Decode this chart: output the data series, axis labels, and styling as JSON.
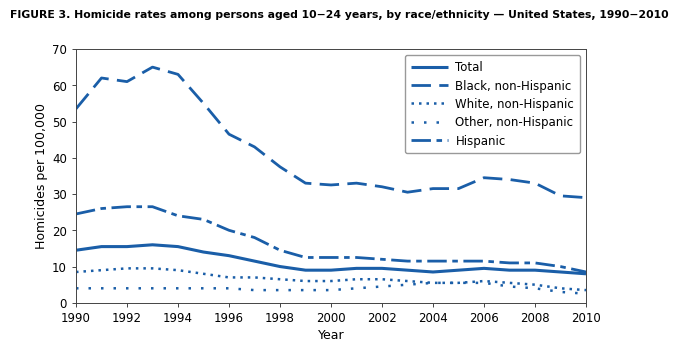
{
  "title": "FIGURE 3. Homicide rates among persons aged 10−24 years, by race/ethnicity — United States, 1990−2010",
  "xlabel": "Year",
  "ylabel": "Homicides per 100,000",
  "ylim": [
    0,
    70
  ],
  "yticks": [
    0,
    10,
    20,
    30,
    40,
    50,
    60,
    70
  ],
  "years": [
    1990,
    1991,
    1992,
    1993,
    1994,
    1995,
    1996,
    1997,
    1998,
    1999,
    2000,
    2001,
    2002,
    2003,
    2004,
    2005,
    2006,
    2007,
    2008,
    2009,
    2010
  ],
  "xticks": [
    1990,
    1992,
    1994,
    1996,
    1998,
    2000,
    2002,
    2004,
    2006,
    2008,
    2010
  ],
  "series": {
    "Total": {
      "values": [
        14.5,
        15.5,
        15.5,
        16.0,
        15.5,
        14.0,
        13.0,
        11.5,
        10.0,
        9.0,
        9.0,
        9.5,
        9.5,
        9.0,
        8.5,
        9.0,
        9.5,
        9.0,
        9.0,
        8.5,
        8.0
      ],
      "linestyle": "solid",
      "linewidth": 2.2,
      "color": "#1A5EA8"
    },
    "Black, non-Hispanic": {
      "values": [
        53.5,
        62.0,
        61.0,
        65.0,
        63.0,
        55.0,
        46.5,
        43.0,
        37.5,
        33.0,
        32.5,
        33.0,
        32.0,
        30.5,
        31.5,
        31.5,
        34.5,
        34.0,
        33.0,
        29.5,
        29.0
      ],
      "linestyle": "long_dash",
      "linewidth": 2.0,
      "color": "#1A5EA8"
    },
    "White, non-Hispanic": {
      "values": [
        8.5,
        9.0,
        9.5,
        9.5,
        9.0,
        8.0,
        7.0,
        7.0,
        6.5,
        6.0,
        6.0,
        6.5,
        6.5,
        6.0,
        5.5,
        5.5,
        6.0,
        5.5,
        5.0,
        4.0,
        3.5
      ],
      "linestyle": "dense_dot",
      "linewidth": 1.8,
      "color": "#1A5EA8"
    },
    "Other, non-Hispanic": {
      "values": [
        4.0,
        4.0,
        4.0,
        4.0,
        4.0,
        4.0,
        4.0,
        3.5,
        3.5,
        3.5,
        3.5,
        4.0,
        4.5,
        5.0,
        5.5,
        5.5,
        5.5,
        4.5,
        4.0,
        3.0,
        2.5
      ],
      "linestyle": "sparse_dot",
      "linewidth": 1.8,
      "color": "#1A5EA8"
    },
    "Hispanic": {
      "values": [
        24.5,
        26.0,
        26.5,
        26.5,
        24.0,
        23.0,
        20.0,
        18.0,
        14.5,
        12.5,
        12.5,
        12.5,
        12.0,
        11.5,
        11.5,
        11.5,
        11.5,
        11.0,
        11.0,
        10.0,
        8.5
      ],
      "linestyle": "dash_dot",
      "linewidth": 2.0,
      "color": "#1A5EA8"
    }
  },
  "legend_order": [
    "Total",
    "Black, non-Hispanic",
    "White, non-Hispanic",
    "Other, non-Hispanic",
    "Hispanic"
  ],
  "background_color": "#FFFFFF",
  "plot_bg_color": "#FFFFFF",
  "border_color": "#444444",
  "title_fontsize": 7.8,
  "axis_label_fontsize": 9,
  "tick_fontsize": 8.5,
  "legend_fontsize": 8.5
}
